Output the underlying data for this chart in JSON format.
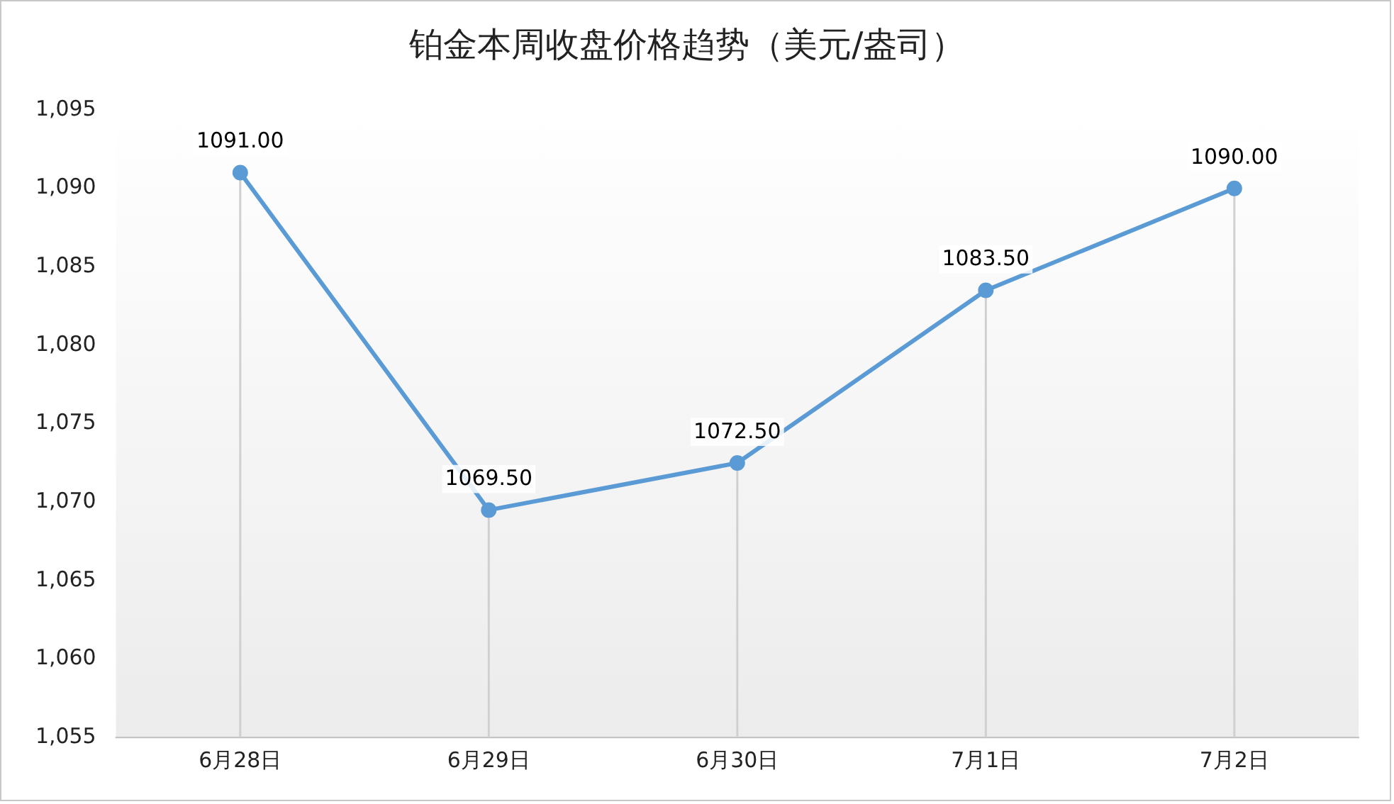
{
  "chart_data": {
    "type": "line",
    "title": "铂金本周收盘价格趋势（美元/盎司）",
    "categories": [
      "6月28日",
      "6月29日",
      "6月30日",
      "7月1日",
      "7月2日"
    ],
    "series": [
      {
        "color": "#5b9bd5",
        "values": [
          1091.0,
          1069.5,
          1072.5,
          1083.5,
          1090.0
        ]
      }
    ],
    "value_labels": [
      "1091.00",
      "1069.50",
      "1072.50",
      "1083.50",
      "1090.00"
    ],
    "ylim": [
      1055,
      1095
    ],
    "yticks": [
      {
        "value": 1055,
        "label": "1,055"
      },
      {
        "value": 1060,
        "label": "1,060"
      },
      {
        "value": 1065,
        "label": "1,065"
      },
      {
        "value": 1070,
        "label": "1,070"
      },
      {
        "value": 1075,
        "label": "1,075"
      },
      {
        "value": 1080,
        "label": "1,080"
      },
      {
        "value": 1085,
        "label": "1,085"
      },
      {
        "value": 1090,
        "label": "1,090"
      },
      {
        "value": 1095,
        "label": "1,095"
      }
    ],
    "grid": "x",
    "legend": false,
    "marker": "circle",
    "line_style": "solid"
  }
}
